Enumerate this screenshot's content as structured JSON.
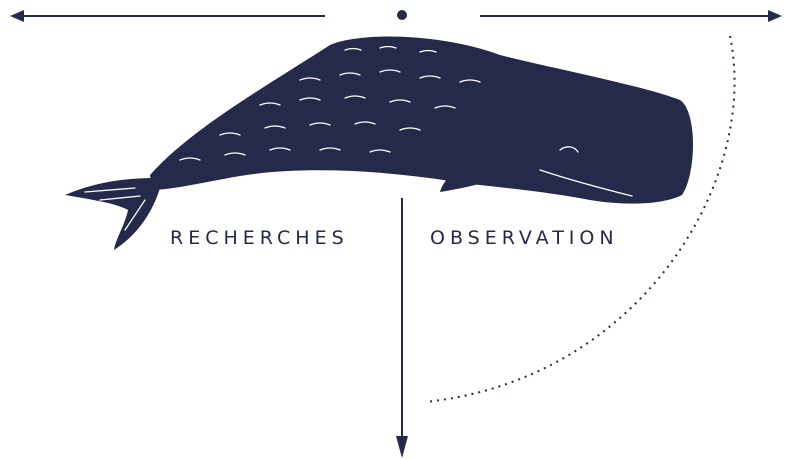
{
  "labels": {
    "left": "RECHERCHES",
    "right": "OBSERVATION"
  }
}
